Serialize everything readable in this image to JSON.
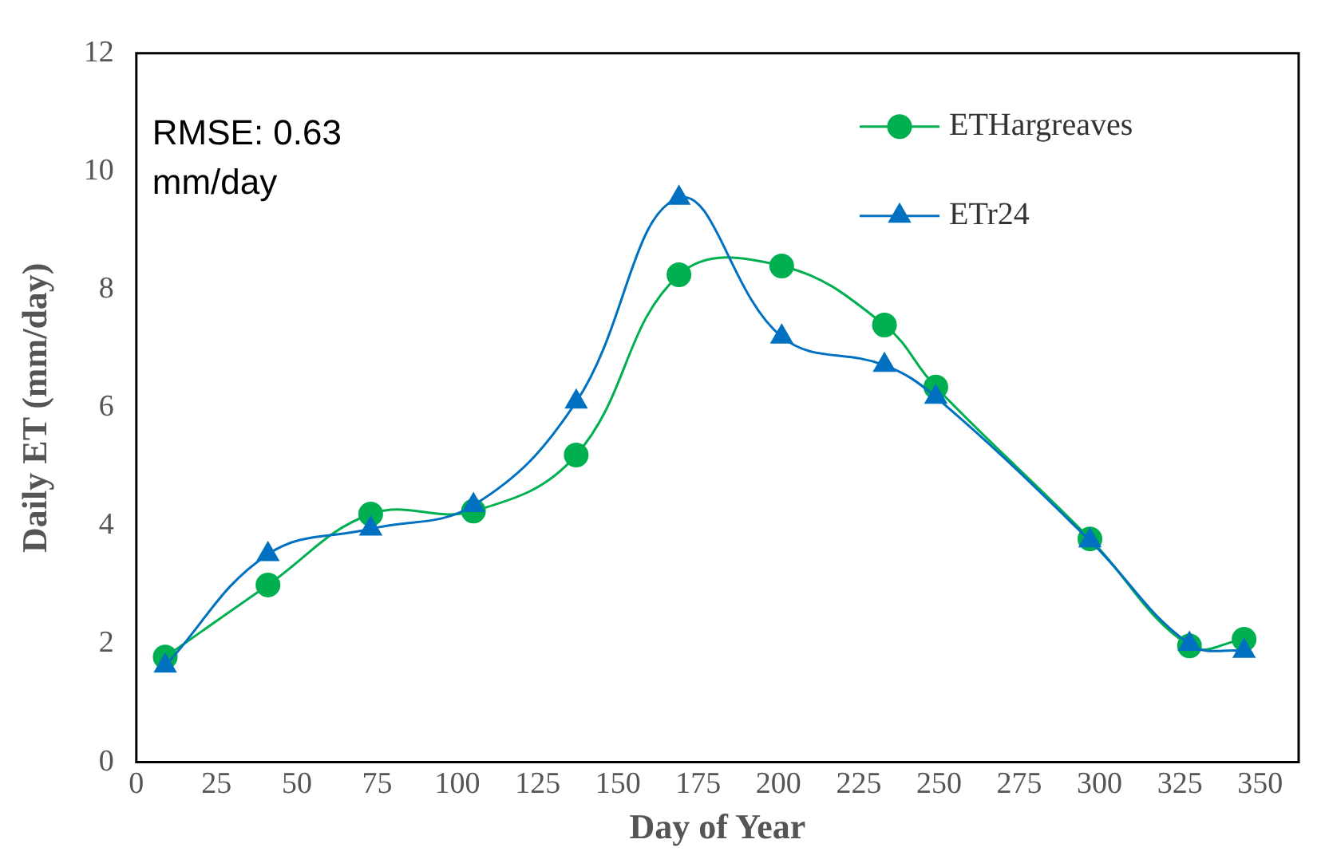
{
  "chart_data": {
    "type": "line",
    "xlabel": "Day of Year",
    "ylabel": "Daily ET (mm/day)",
    "xlim": [
      0,
      362
    ],
    "xticks": [
      0,
      25,
      50,
      75,
      100,
      125,
      150,
      175,
      200,
      225,
      250,
      275,
      300,
      325,
      350
    ],
    "ylim": [
      0,
      12
    ],
    "yticks": [
      0,
      2,
      4,
      6,
      8,
      10,
      12
    ],
    "grid": false,
    "legend": "top right",
    "line_style": "solid",
    "annotations": [
      "RMSE: 0.63 mm/day"
    ],
    "series": [
      {
        "name": "ETHargreaves",
        "color": "#00b050",
        "marker": "circle",
        "x": [
          9,
          41,
          73,
          105,
          137,
          169,
          201,
          233,
          249,
          297,
          328,
          345
        ],
        "values": [
          1.78,
          3.0,
          4.2,
          4.25,
          5.2,
          8.25,
          8.4,
          7.4,
          6.35,
          3.78,
          1.97,
          2.08
        ]
      },
      {
        "name": "ETr24",
        "color": "#0070c0",
        "marker": "triangle",
        "x": [
          9,
          41,
          73,
          105,
          137,
          169,
          201,
          233,
          249,
          297,
          328,
          345
        ],
        "values": [
          1.63,
          3.52,
          3.95,
          4.35,
          6.1,
          9.55,
          7.2,
          6.72,
          6.18,
          3.75,
          2.0,
          1.88
        ]
      }
    ]
  }
}
